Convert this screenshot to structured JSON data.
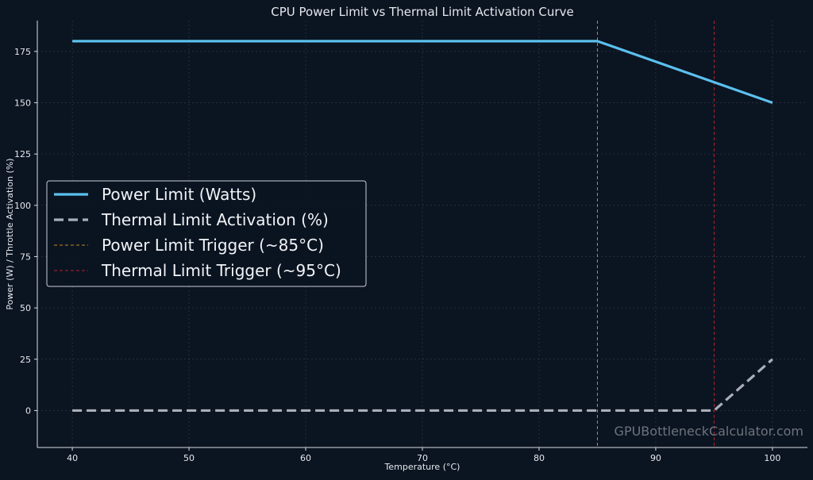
{
  "chart_data": {
    "type": "line",
    "title": "CPU Power Limit vs Thermal Limit Activation Curve",
    "xlabel": "Temperature (°C)",
    "ylabel": "Power (W) / Throttle Activation (%)",
    "xlim": [
      37,
      103
    ],
    "ylim": [
      -18,
      190
    ],
    "xticks": [
      40,
      50,
      60,
      70,
      80,
      90,
      100
    ],
    "yticks": [
      0,
      25,
      50,
      75,
      100,
      125,
      150,
      175
    ],
    "grid": true,
    "legend_position": "center-left",
    "series": [
      {
        "name": "Power Limit (Watts)",
        "style": "solid",
        "color": "#5bc0ee",
        "x": [
          40,
          85,
          95,
          100
        ],
        "y": [
          180,
          180,
          160,
          150
        ]
      },
      {
        "name": "Thermal Limit Activation (%)",
        "style": "dashed",
        "color": "#a9afb8",
        "x": [
          40,
          95,
          100
        ],
        "y": [
          0,
          0,
          25
        ]
      }
    ],
    "vlines": [
      {
        "name": "Power Limit Trigger (~85°C)",
        "x": 85,
        "style": "dashed",
        "color": "#c58a1e"
      },
      {
        "name": "Thermal Limit Trigger (~95°C)",
        "x": 95,
        "style": "dashed",
        "color": "#b5212a"
      }
    ]
  },
  "watermark": "GPUBottleneckCalculator.com"
}
